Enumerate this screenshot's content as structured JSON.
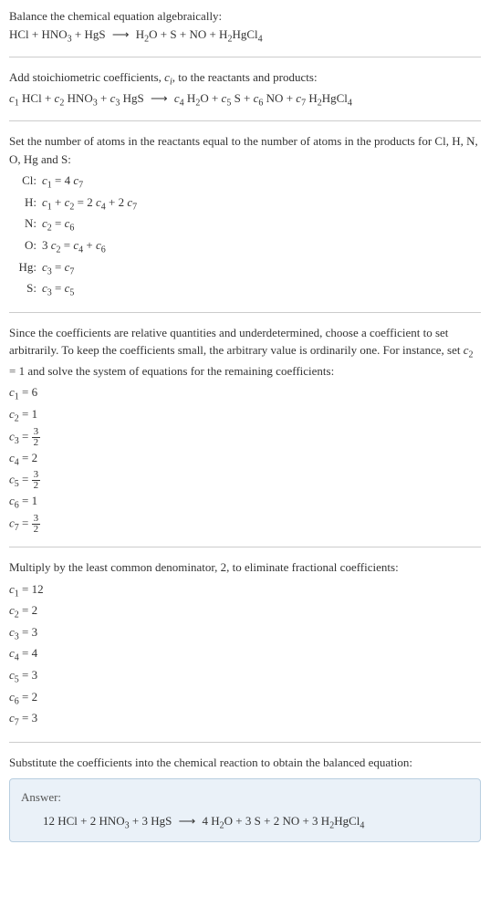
{
  "intro": {
    "line1": "Balance the chemical equation algebraically:",
    "reactants": [
      "HCl",
      "HNO",
      "HgS"
    ],
    "reactant_subs": [
      "",
      "3",
      ""
    ],
    "products": [
      "H",
      "O",
      "S",
      "NO",
      "H",
      "HgCl"
    ],
    "product_text": "H₂O + S + NO + H₂HgCl₄"
  },
  "stoich": {
    "text": "Add stoichiometric coefficients, ",
    "ci": "c",
    "ci_sub": "i",
    "text2": ", to the reactants and products:"
  },
  "atoms_intro": "Set the number of atoms in the reactants equal to the number of atoms in the products for Cl, H, N, O, Hg and S:",
  "atoms": [
    {
      "label": "Cl:",
      "eq_parts": [
        "c₁ = 4 c₇"
      ]
    },
    {
      "label": "H:",
      "eq_parts": [
        "c₁ + c₂ = 2 c₄ + 2 c₇"
      ]
    },
    {
      "label": "N:",
      "eq_parts": [
        "c₂ = c₆"
      ]
    },
    {
      "label": "O:",
      "eq_parts": [
        "3 c₂ = c₄ + c₆"
      ]
    },
    {
      "label": "Hg:",
      "eq_parts": [
        "c₃ = c₇"
      ]
    },
    {
      "label": "S:",
      "eq_parts": [
        "c₃ = c₅"
      ]
    }
  ],
  "arbitrary_text": "Since the coefficients are relative quantities and underdetermined, choose a coefficient to set arbitrarily. To keep the coefficients small, the arbitrary value is ordinarily one. For instance, set c₂ = 1 and solve the system of equations for the remaining coefficients:",
  "coeffs1": [
    {
      "c": "c₁",
      "val": "6",
      "frac": false
    },
    {
      "c": "c₂",
      "val": "1",
      "frac": false
    },
    {
      "c": "c₃",
      "num": "3",
      "den": "2",
      "frac": true
    },
    {
      "c": "c₄",
      "val": "2",
      "frac": false
    },
    {
      "c": "c₅",
      "num": "3",
      "den": "2",
      "frac": true
    },
    {
      "c": "c₆",
      "val": "1",
      "frac": false
    },
    {
      "c": "c₇",
      "num": "3",
      "den": "2",
      "frac": true
    }
  ],
  "multiply_text": "Multiply by the least common denominator, 2, to eliminate fractional coefficients:",
  "coeffs2": [
    {
      "c": "c₁",
      "val": "12"
    },
    {
      "c": "c₂",
      "val": "2"
    },
    {
      "c": "c₃",
      "val": "3"
    },
    {
      "c": "c₄",
      "val": "4"
    },
    {
      "c": "c₅",
      "val": "3"
    },
    {
      "c": "c₆",
      "val": "2"
    },
    {
      "c": "c₇",
      "val": "3"
    }
  ],
  "substitute_text": "Substitute the coefficients into the chemical reaction to obtain the balanced equation:",
  "answer": {
    "label": "Answer:",
    "coeffs_r": [
      "12",
      "2",
      "3"
    ],
    "coeffs_p": [
      "4",
      "3",
      "2",
      "3"
    ]
  },
  "colors": {
    "text": "#333333",
    "hr": "#cccccc",
    "answer_bg": "#eaf1f8",
    "answer_border": "#b8cee0"
  }
}
